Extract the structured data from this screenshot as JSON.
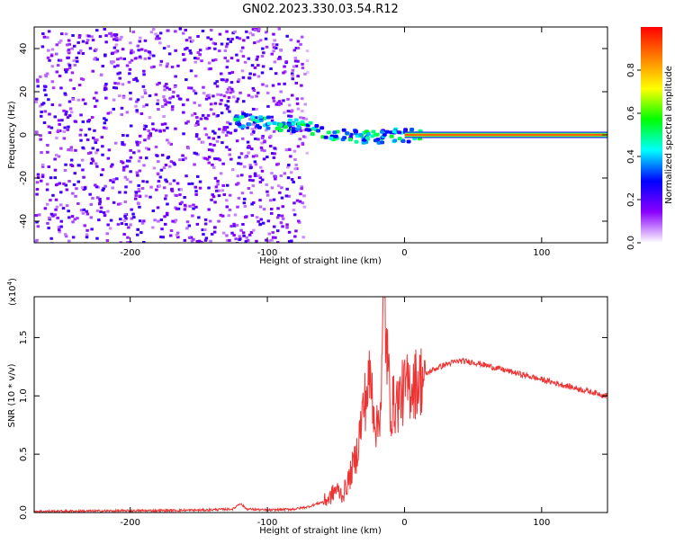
{
  "title": "GN02.2023.330.03.54.R12",
  "chart_data": [
    {
      "type": "heatmap",
      "xlabel": "Height of straight line (km)",
      "ylabel": "Frequency (Hz)",
      "xlim": [
        -270,
        148
      ],
      "ylim": [
        -50,
        50
      ],
      "x_ticks": [
        -200,
        -100,
        0,
        100
      ],
      "x_tick_labels": [
        "-200",
        "-100",
        "0",
        "100"
      ],
      "y_ticks": [
        -40,
        -20,
        0,
        20,
        40
      ],
      "y_tick_labels": [
        "-40",
        "-20",
        "0",
        "20",
        "40"
      ],
      "colorbar": {
        "label": "Normalized spectral amplitude",
        "range": [
          0,
          1
        ],
        "ticks": [
          0.0,
          0.2,
          0.4,
          0.6,
          0.8
        ],
        "tick_labels": [
          "0.0",
          "0.2",
          "0.4",
          "0.6",
          "0.8"
        ],
        "colors": [
          "#ffffff",
          "#8a00ff",
          "#0000ff",
          "#00ffff",
          "#00ff00",
          "#ffff00",
          "#ff8000",
          "#ff0000"
        ]
      },
      "noise_region_x": [
        -270,
        -70
      ],
      "signal_track": [
        {
          "x": -125,
          "y": 8
        },
        {
          "x": -110,
          "y": 7
        },
        {
          "x": -95,
          "y": 6
        },
        {
          "x": -80,
          "y": 5
        },
        {
          "x": -65,
          "y": 3
        },
        {
          "x": -50,
          "y": 1
        },
        {
          "x": -35,
          "y": 0
        },
        {
          "x": -20,
          "y": 0
        },
        {
          "x": -5,
          "y": 1
        },
        {
          "x": 10,
          "y": 0
        }
      ],
      "tone_line": {
        "x_start": 0,
        "x_end": 148,
        "y": 0
      }
    },
    {
      "type": "line",
      "xlabel": "Height of straight line (km)",
      "ylabel": "SNR (10 * v/v)",
      "y_multiplier": "(x10",
      "y_multiplier_exp": "4",
      "y_multiplier_close": ")",
      "xlim": [
        -270,
        148
      ],
      "ylim": [
        0,
        1.85
      ],
      "x_ticks": [
        -200,
        -100,
        0,
        100
      ],
      "x_tick_labels": [
        "-200",
        "-100",
        "0",
        "100"
      ],
      "y_ticks": [
        0.0,
        0.5,
        1.0,
        1.5
      ],
      "y_tick_labels": [
        "0.0",
        "0.5",
        "1.0",
        "1.5"
      ],
      "color": "#ee3333",
      "series": [
        {
          "x": [
            -270,
            -200,
            -150,
            -125,
            -120,
            -115,
            -100,
            -80,
            -70,
            -60,
            -55,
            -50,
            -45,
            -40,
            -35,
            -30,
            -25,
            -20,
            -17,
            -15,
            -12,
            -10,
            -5,
            0,
            5,
            10,
            15,
            20,
            30,
            40,
            50,
            60,
            80,
            100,
            120,
            148
          ],
          "y": [
            0.01,
            0.015,
            0.02,
            0.03,
            0.08,
            0.03,
            0.02,
            0.03,
            0.05,
            0.09,
            0.12,
            0.2,
            0.15,
            0.3,
            0.5,
            0.9,
            1.15,
            0.7,
            1.0,
            1.85,
            1.2,
            0.9,
            0.95,
            1.05,
            1.1,
            1.12,
            1.18,
            1.22,
            1.27,
            1.3,
            1.29,
            1.26,
            1.2,
            1.14,
            1.08,
            1.0
          ]
        }
      ]
    }
  ]
}
